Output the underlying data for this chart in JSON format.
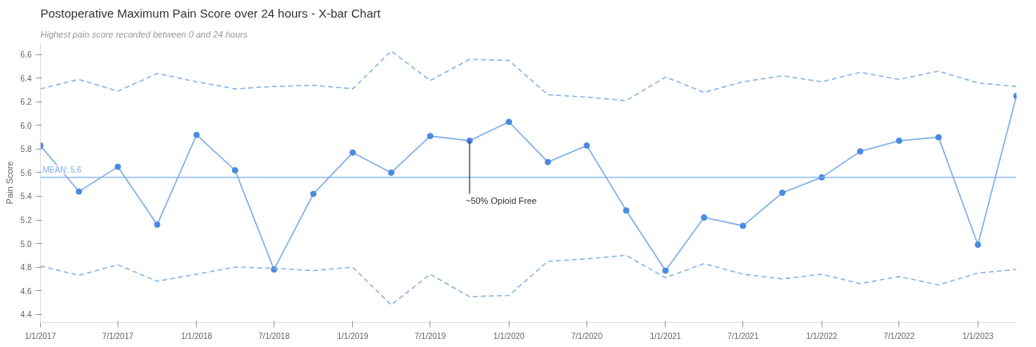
{
  "chart_data": {
    "type": "line",
    "title": "Postoperative Maximum Pain Score over 24 hours - X-bar Chart",
    "subtitle": "Highest pain score recorded between 0 and 24 hours",
    "ylabel": "Pain Score",
    "x": [
      "2017-01-01",
      "2017-04-01",
      "2017-07-01",
      "2017-10-01",
      "2018-01-01",
      "2018-04-01",
      "2018-07-01",
      "2018-10-01",
      "2019-01-01",
      "2019-04-01",
      "2019-07-01",
      "2019-10-01",
      "2020-01-01",
      "2020-04-01",
      "2020-07-01",
      "2020-10-01",
      "2021-01-01",
      "2021-04-01",
      "2021-07-01",
      "2021-10-01",
      "2022-01-01",
      "2022-04-01",
      "2022-07-01",
      "2022-10-01",
      "2023-01-01",
      "2023-04-01"
    ],
    "series": [
      {
        "color": "#4a8ae0",
        "marker": "circle",
        "line_style": "solid",
        "values": [
          5.83,
          5.44,
          5.65,
          5.16,
          5.92,
          5.62,
          4.78,
          5.42,
          5.77,
          5.6,
          5.91,
          5.87,
          6.03,
          5.69,
          5.83,
          5.28,
          4.77,
          5.22,
          5.15,
          5.43,
          5.56,
          5.78,
          5.87,
          5.9,
          4.99,
          6.25
        ]
      },
      {
        "color": "#8fb4e6",
        "marker": "none",
        "line_style": "dashed",
        "values": [
          6.31,
          6.39,
          6.29,
          6.44,
          6.37,
          6.31,
          6.33,
          6.34,
          6.31,
          6.63,
          6.38,
          6.56,
          6.55,
          6.26,
          6.24,
          6.21,
          6.41,
          6.28,
          6.37,
          6.42,
          6.37,
          6.45,
          6.39,
          6.46,
          6.36,
          6.33
        ]
      },
      {
        "color": "#8fb4e6",
        "marker": "none",
        "line_style": "dashed",
        "values": [
          4.81,
          4.73,
          4.82,
          4.68,
          4.74,
          4.8,
          4.79,
          4.77,
          4.8,
          4.48,
          4.74,
          4.55,
          4.56,
          4.85,
          4.87,
          4.9,
          4.71,
          4.83,
          4.74,
          4.7,
          4.74,
          4.66,
          4.72,
          4.65,
          4.75,
          4.78
        ]
      }
    ],
    "xlim": [
      "2017-01-01",
      "2023-04-01"
    ],
    "xticks": [
      {
        "value": "2017-01-01",
        "label": "1/1/2017"
      },
      {
        "value": "2017-07-01",
        "label": "7/1/2017"
      },
      {
        "value": "2018-01-01",
        "label": "1/1/2018"
      },
      {
        "value": "2018-07-01",
        "label": "7/1/2018"
      },
      {
        "value": "2019-01-01",
        "label": "1/1/2019"
      },
      {
        "value": "2019-07-01",
        "label": "7/1/2019"
      },
      {
        "value": "2020-01-01",
        "label": "1/1/2020"
      },
      {
        "value": "2020-07-01",
        "label": "7/1/2020"
      },
      {
        "value": "2021-01-01",
        "label": "1/1/2021"
      },
      {
        "value": "2021-07-01",
        "label": "7/1/2021"
      },
      {
        "value": "2022-01-01",
        "label": "1/1/2022"
      },
      {
        "value": "2022-07-01",
        "label": "7/1/2022"
      },
      {
        "value": "2023-01-01",
        "label": "1/1/2023"
      }
    ],
    "ylim": [
      4.33,
      6.7
    ],
    "yticks": [
      4.4,
      4.6,
      4.8,
      {
        "value": 5,
        "label": "5.0"
      },
      5.2,
      5.4,
      5.6,
      5.8,
      {
        "value": 6,
        "label": "6.0"
      },
      6.2,
      6.4,
      6.6
    ],
    "ref_lines": [
      {
        "axis": "y",
        "value": 5.56,
        "label": "MEAN: 5.6",
        "color": "#7eaee8"
      }
    ],
    "annotations": [
      {
        "text": "~50% Opioid Free",
        "x": "2019-10-01",
        "y": 5.87
      }
    ]
  }
}
